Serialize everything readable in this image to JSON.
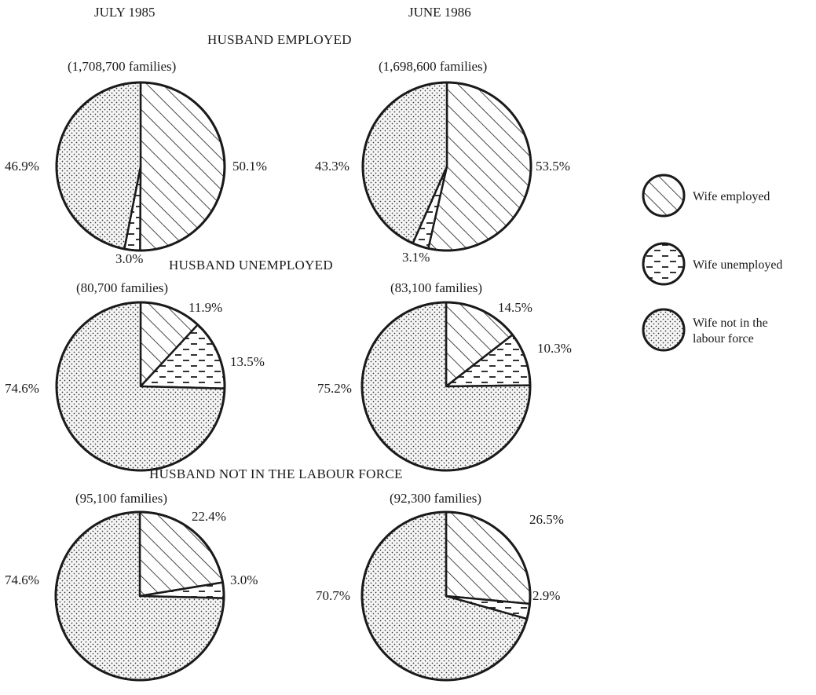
{
  "columns": [
    "JULY 1985",
    "JUNE 1986"
  ],
  "legend": [
    {
      "key": "employed",
      "label_lines": [
        "Wife employed"
      ],
      "pattern": "diagonal-hatch"
    },
    {
      "key": "unemployed",
      "label_lines": [
        "Wife unemployed"
      ],
      "pattern": "dashes"
    },
    {
      "key": "nilf",
      "label_lines": [
        "Wife not in the",
        "labour force"
      ],
      "pattern": "dots"
    }
  ],
  "colors": {
    "ink": "#1a1a1a",
    "background": "#ffffff"
  },
  "chart_data": [
    {
      "type": "pie",
      "section": "HUSBAND EMPLOYED",
      "period": "JULY 1985",
      "families_label": "(1,708,700 families)",
      "slices": [
        {
          "category": "Wife employed",
          "value": 50.1,
          "label": "50.1%"
        },
        {
          "category": "Wife unemployed",
          "value": 3.0,
          "label": "3.0%"
        },
        {
          "category": "Wife not in the labour force",
          "value": 46.9,
          "label": "46.9%"
        }
      ]
    },
    {
      "type": "pie",
      "section": "HUSBAND EMPLOYED",
      "period": "JUNE 1986",
      "families_label": "(1,698,600 families)",
      "slices": [
        {
          "category": "Wife employed",
          "value": 53.5,
          "label": "53.5%"
        },
        {
          "category": "Wife unemployed",
          "value": 3.1,
          "label": "3.1%"
        },
        {
          "category": "Wife not in the labour force",
          "value": 43.3,
          "label": "43.3%"
        }
      ]
    },
    {
      "type": "pie",
      "section": "HUSBAND UNEMPLOYED",
      "period": "JULY 1985",
      "families_label": "(80,700 families)",
      "slices": [
        {
          "category": "Wife employed",
          "value": 11.9,
          "label": "11.9%"
        },
        {
          "category": "Wife unemployed",
          "value": 13.5,
          "label": "13.5%"
        },
        {
          "category": "Wife not in the labour force",
          "value": 74.6,
          "label": "74.6%"
        }
      ]
    },
    {
      "type": "pie",
      "section": "HUSBAND UNEMPLOYED",
      "period": "JUNE 1986",
      "families_label": "(83,100 families)",
      "slices": [
        {
          "category": "Wife employed",
          "value": 14.5,
          "label": "14.5%"
        },
        {
          "category": "Wife unemployed",
          "value": 10.3,
          "label": "10.3%"
        },
        {
          "category": "Wife not in the labour force",
          "value": 75.2,
          "label": "75.2%"
        }
      ]
    },
    {
      "type": "pie",
      "section": "HUSBAND NOT IN THE LABOUR FORCE",
      "period": "JULY 1985",
      "families_label": "(95,100 families)",
      "slices": [
        {
          "category": "Wife employed",
          "value": 22.4,
          "label": "22.4%"
        },
        {
          "category": "Wife unemployed",
          "value": 3.0,
          "label": "3.0%"
        },
        {
          "category": "Wife not in the labour force",
          "value": 74.6,
          "label": "74.6%"
        }
      ]
    },
    {
      "type": "pie",
      "section": "HUSBAND NOT IN THE LABOUR FORCE",
      "period": "JUNE 1986",
      "families_label": "(92,300 families)",
      "slices": [
        {
          "category": "Wife employed",
          "value": 26.5,
          "label": "26.5%"
        },
        {
          "category": "Wife unemployed",
          "value": 2.9,
          "label": "2.9%"
        },
        {
          "category": "Wife not in the labour force",
          "value": 70.7,
          "label": "70.7%"
        }
      ]
    }
  ]
}
